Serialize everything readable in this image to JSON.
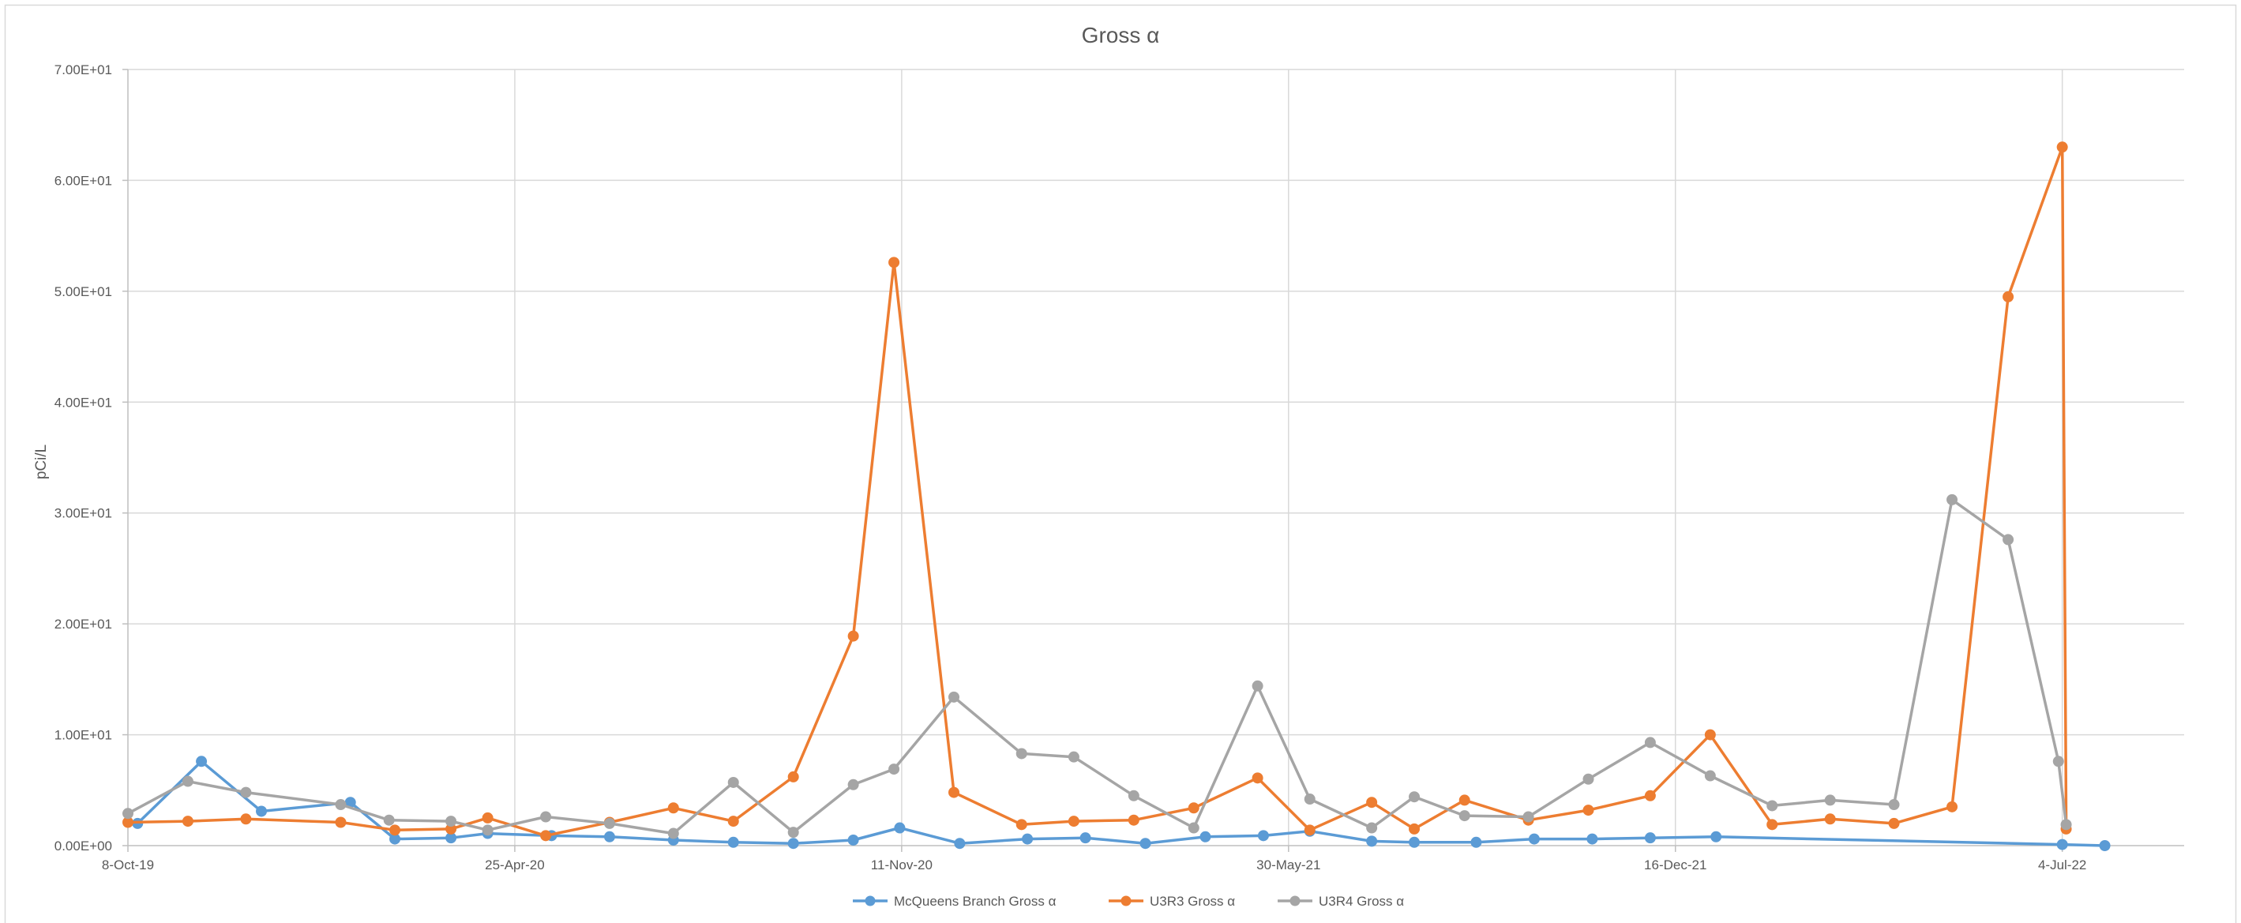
{
  "chart_data": {
    "type": "line",
    "title": "Gross α",
    "xlabel": "",
    "ylabel": "pCi/L",
    "x_axis": {
      "type": "date",
      "range": [
        "2019-10-08",
        "2022-09-05"
      ],
      "ticks": [
        {
          "date": "2019-10-08",
          "label": "8-Oct-19"
        },
        {
          "date": "2020-04-25",
          "label": "25-Apr-20"
        },
        {
          "date": "2020-11-11",
          "label": "11-Nov-20"
        },
        {
          "date": "2021-05-30",
          "label": "30-May-21"
        },
        {
          "date": "2021-12-16",
          "label": "16-Dec-21"
        },
        {
          "date": "2022-07-04",
          "label": "4-Jul-22"
        }
      ]
    },
    "y_axis": {
      "min": 0,
      "max": 70,
      "ticks": [
        {
          "value": 0,
          "label": "0.00E+00"
        },
        {
          "value": 10,
          "label": "1.00E+01"
        },
        {
          "value": 20,
          "label": "2.00E+01"
        },
        {
          "value": 30,
          "label": "3.00E+01"
        },
        {
          "value": 40,
          "label": "4.00E+01"
        },
        {
          "value": 50,
          "label": "5.00E+01"
        },
        {
          "value": 60,
          "label": "6.00E+01"
        },
        {
          "value": 70,
          "label": "7.00E+01"
        }
      ]
    },
    "grid": true,
    "legend_position": "bottom",
    "series": [
      {
        "name": "McQueens Branch Gross α",
        "color": "#5B9BD5",
        "points": [
          {
            "x": "2019-10-13",
            "y": 2.0
          },
          {
            "x": "2019-11-15",
            "y": 7.6
          },
          {
            "x": "2019-12-16",
            "y": 3.1
          },
          {
            "x": "2020-01-31",
            "y": 3.9
          },
          {
            "x": "2020-02-23",
            "y": 0.6
          },
          {
            "x": "2020-03-23",
            "y": 0.7
          },
          {
            "x": "2020-04-11",
            "y": 1.1
          },
          {
            "x": "2020-05-14",
            "y": 0.9
          },
          {
            "x": "2020-06-13",
            "y": 0.8
          },
          {
            "x": "2020-07-16",
            "y": 0.5
          },
          {
            "x": "2020-08-16",
            "y": 0.3
          },
          {
            "x": "2020-09-16",
            "y": 0.2
          },
          {
            "x": "2020-10-17",
            "y": 0.5
          },
          {
            "x": "2020-11-10",
            "y": 1.6
          },
          {
            "x": "2020-12-11",
            "y": 0.2
          },
          {
            "x": "2021-01-15",
            "y": 0.6
          },
          {
            "x": "2021-02-14",
            "y": 0.7
          },
          {
            "x": "2021-03-17",
            "y": 0.2
          },
          {
            "x": "2021-04-17",
            "y": 0.8
          },
          {
            "x": "2021-05-17",
            "y": 0.9
          },
          {
            "x": "2021-06-10",
            "y": 1.3
          },
          {
            "x": "2021-07-12",
            "y": 0.4
          },
          {
            "x": "2021-08-03",
            "y": 0.3
          },
          {
            "x": "2021-09-04",
            "y": 0.3
          },
          {
            "x": "2021-10-04",
            "y": 0.6
          },
          {
            "x": "2021-11-03",
            "y": 0.6
          },
          {
            "x": "2021-12-03",
            "y": 0.7
          },
          {
            "x": "2022-01-06",
            "y": 0.8
          },
          {
            "x": "2022-07-04",
            "y": 0.1
          },
          {
            "x": "2022-07-26",
            "y": 0.0
          }
        ]
      },
      {
        "name": "U3R3 Gross α",
        "color": "#ED7D31",
        "points": [
          {
            "x": "2019-10-08",
            "y": 2.1
          },
          {
            "x": "2019-11-08",
            "y": 2.2
          },
          {
            "x": "2019-12-08",
            "y": 2.4
          },
          {
            "x": "2020-01-26",
            "y": 2.1
          },
          {
            "x": "2020-02-23",
            "y": 1.4
          },
          {
            "x": "2020-03-23",
            "y": 1.5
          },
          {
            "x": "2020-04-11",
            "y": 2.5
          },
          {
            "x": "2020-05-11",
            "y": 0.9
          },
          {
            "x": "2020-06-13",
            "y": 2.1
          },
          {
            "x": "2020-07-16",
            "y": 3.4
          },
          {
            "x": "2020-08-16",
            "y": 2.2
          },
          {
            "x": "2020-09-16",
            "y": 6.2
          },
          {
            "x": "2020-10-17",
            "y": 18.9
          },
          {
            "x": "2020-11-07",
            "y": 52.6
          },
          {
            "x": "2020-12-08",
            "y": 4.8
          },
          {
            "x": "2021-01-12",
            "y": 1.9
          },
          {
            "x": "2021-02-08",
            "y": 2.2
          },
          {
            "x": "2021-03-11",
            "y": 2.3
          },
          {
            "x": "2021-04-11",
            "y": 3.4
          },
          {
            "x": "2021-05-14",
            "y": 6.1
          },
          {
            "x": "2021-06-10",
            "y": 1.4
          },
          {
            "x": "2021-07-12",
            "y": 3.9
          },
          {
            "x": "2021-08-03",
            "y": 1.5
          },
          {
            "x": "2021-08-29",
            "y": 4.1
          },
          {
            "x": "2021-10-01",
            "y": 2.3
          },
          {
            "x": "2021-11-01",
            "y": 3.2
          },
          {
            "x": "2021-12-03",
            "y": 4.5
          },
          {
            "x": "2022-01-03",
            "y": 10.0
          },
          {
            "x": "2022-02-04",
            "y": 1.9
          },
          {
            "x": "2022-03-06",
            "y": 2.4
          },
          {
            "x": "2022-04-08",
            "y": 2.0
          },
          {
            "x": "2022-05-08",
            "y": 3.5
          },
          {
            "x": "2022-06-06",
            "y": 49.5
          },
          {
            "x": "2022-07-04",
            "y": 63.0
          },
          {
            "x": "2022-07-06",
            "y": 1.5
          }
        ]
      },
      {
        "name": "U3R4 Gross α",
        "color": "#A5A5A5",
        "points": [
          {
            "x": "2019-10-08",
            "y": 2.9
          },
          {
            "x": "2019-11-08",
            "y": 5.8
          },
          {
            "x": "2019-12-08",
            "y": 4.8
          },
          {
            "x": "2020-01-26",
            "y": 3.7
          },
          {
            "x": "2020-02-20",
            "y": 2.3
          },
          {
            "x": "2020-03-23",
            "y": 2.2
          },
          {
            "x": "2020-04-11",
            "y": 1.4
          },
          {
            "x": "2020-05-11",
            "y": 2.6
          },
          {
            "x": "2020-06-13",
            "y": 2.0
          },
          {
            "x": "2020-07-16",
            "y": 1.1
          },
          {
            "x": "2020-08-16",
            "y": 5.7
          },
          {
            "x": "2020-09-16",
            "y": 1.2
          },
          {
            "x": "2020-10-17",
            "y": 5.5
          },
          {
            "x": "2020-11-07",
            "y": 6.9
          },
          {
            "x": "2020-12-08",
            "y": 13.4
          },
          {
            "x": "2021-01-12",
            "y": 8.3
          },
          {
            "x": "2021-02-08",
            "y": 8.0
          },
          {
            "x": "2021-03-11",
            "y": 4.5
          },
          {
            "x": "2021-04-11",
            "y": 1.6
          },
          {
            "x": "2021-05-14",
            "y": 14.4
          },
          {
            "x": "2021-06-10",
            "y": 4.2
          },
          {
            "x": "2021-07-12",
            "y": 1.6
          },
          {
            "x": "2021-08-03",
            "y": 4.4
          },
          {
            "x": "2021-08-29",
            "y": 2.7
          },
          {
            "x": "2021-10-01",
            "y": 2.6
          },
          {
            "x": "2021-11-01",
            "y": 6.0
          },
          {
            "x": "2021-12-03",
            "y": 9.3
          },
          {
            "x": "2022-01-03",
            "y": 6.3
          },
          {
            "x": "2022-02-04",
            "y": 3.6
          },
          {
            "x": "2022-03-06",
            "y": 4.1
          },
          {
            "x": "2022-04-08",
            "y": 3.7
          },
          {
            "x": "2022-05-08",
            "y": 31.2
          },
          {
            "x": "2022-06-06",
            "y": 27.6
          },
          {
            "x": "2022-07-02",
            "y": 7.6
          },
          {
            "x": "2022-07-06",
            "y": 1.9
          }
        ]
      }
    ]
  }
}
